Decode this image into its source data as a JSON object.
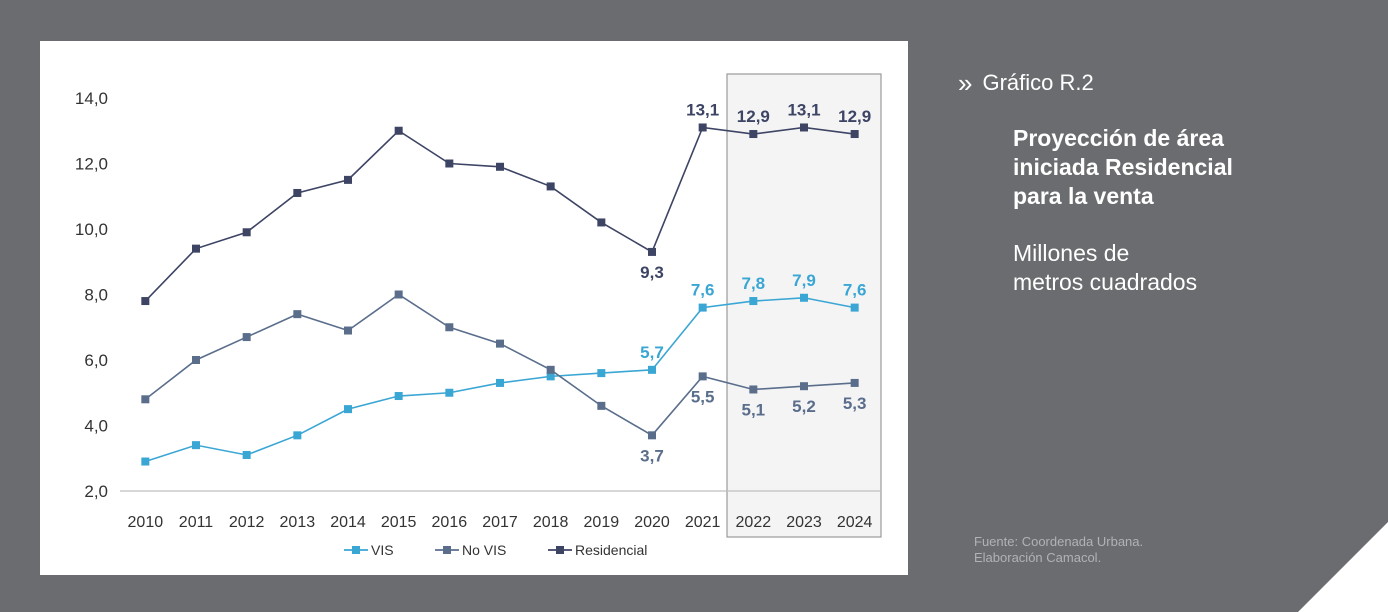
{
  "colors": {
    "background": "#6b6c6f",
    "vis": "#3aa6d4",
    "no_vis": "#5a6e8c",
    "residencial": "#3d4464",
    "highlight_fill": "#f4f4f5",
    "highlight_stroke": "#9a9a9a"
  },
  "side": {
    "icon": "double-chevron-right-icon",
    "chevron": "»",
    "kicker": "Gráfico R.2",
    "title": "Proyección de área\n iniciada Residencial\npara la venta",
    "subtitle": "Millones de\nmetros cuadrados"
  },
  "source": "Fuente: Coordenada Urbana.\nElaboración Camacol.",
  "chart_data": {
    "type": "line",
    "title": "",
    "xlabel": "",
    "ylabel": "",
    "categories": [
      "2010",
      "2011",
      "2012",
      "2013",
      "2014",
      "2015",
      "2016",
      "2017",
      "2018",
      "2019",
      "2020",
      "2021",
      "2022",
      "2023",
      "2024"
    ],
    "ylim": [
      2.0,
      14.0
    ],
    "y_ticks": [
      "2,0",
      "4,0",
      "6,0",
      "8,0",
      "10,0",
      "12,0",
      "14,0"
    ],
    "y_tick_values": [
      2,
      4,
      6,
      8,
      10,
      12,
      14
    ],
    "highlight_range": [
      "2022",
      "2024"
    ],
    "legend_position": "bottom",
    "series": [
      {
        "name": "VIS",
        "color": "#3aa6d4",
        "values": [
          2.9,
          3.4,
          3.1,
          3.7,
          4.5,
          4.9,
          5.0,
          5.3,
          5.5,
          5.6,
          5.7,
          7.6,
          7.8,
          7.9,
          7.6
        ],
        "labels": [
          {
            "index": 10,
            "text": "5,7",
            "pos": "above"
          },
          {
            "index": 11,
            "text": "7,6",
            "pos": "above"
          },
          {
            "index": 12,
            "text": "7,8",
            "pos": "above"
          },
          {
            "index": 13,
            "text": "7,9",
            "pos": "above"
          },
          {
            "index": 14,
            "text": "7,6",
            "pos": "above"
          }
        ]
      },
      {
        "name": "No VIS",
        "color": "#5a6e8c",
        "values": [
          4.8,
          6.0,
          6.7,
          7.4,
          6.9,
          8.0,
          7.0,
          6.5,
          5.7,
          4.6,
          3.7,
          5.5,
          5.1,
          5.2,
          5.3
        ],
        "labels": [
          {
            "index": 10,
            "text": "3,7",
            "pos": "below"
          },
          {
            "index": 11,
            "text": "5,5",
            "pos": "below"
          },
          {
            "index": 12,
            "text": "5,1",
            "pos": "below"
          },
          {
            "index": 13,
            "text": "5,2",
            "pos": "below"
          },
          {
            "index": 14,
            "text": "5,3",
            "pos": "below"
          }
        ]
      },
      {
        "name": "Residencial",
        "color": "#3d4464",
        "values": [
          7.8,
          9.4,
          9.9,
          11.1,
          11.5,
          13.0,
          12.0,
          11.9,
          11.3,
          10.2,
          9.3,
          13.1,
          12.9,
          13.1,
          12.9
        ],
        "labels": [
          {
            "index": 10,
            "text": "9,3",
            "pos": "below"
          },
          {
            "index": 11,
            "text": "13,1",
            "pos": "above"
          },
          {
            "index": 12,
            "text": "12,9",
            "pos": "above"
          },
          {
            "index": 13,
            "text": "13,1",
            "pos": "above"
          },
          {
            "index": 14,
            "text": "12,9",
            "pos": "above"
          }
        ]
      }
    ]
  }
}
